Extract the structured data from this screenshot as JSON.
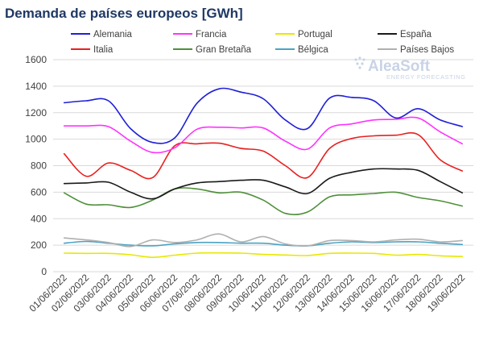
{
  "chart_data": {
    "type": "line",
    "title": "Demanda de países europeos [GWh]",
    "xlabel": "",
    "ylabel": "",
    "ylim": [
      0,
      1600
    ],
    "yticks": [
      0,
      200,
      400,
      600,
      800,
      1000,
      1200,
      1400,
      1600
    ],
    "grid": true,
    "legend_position": "top",
    "x": [
      "01/06/2022",
      "02/06/2022",
      "03/06/2022",
      "04/06/2022",
      "05/06/2022",
      "06/06/2022",
      "07/06/2022",
      "08/06/2022",
      "09/06/2022",
      "10/06/2022",
      "11/06/2022",
      "12/06/2022",
      "13/06/2022",
      "14/06/2022",
      "15/06/2022",
      "16/06/2022",
      "17/06/2022",
      "18/06/2022",
      "19/06/2022"
    ],
    "series": [
      {
        "name": "Alemania",
        "color": "#1f1fd8",
        "values": [
          1275,
          1290,
          1290,
          1080,
          975,
          1010,
          1270,
          1380,
          1355,
          1305,
          1145,
          1080,
          1310,
          1315,
          1290,
          1160,
          1230,
          1145,
          1095
        ]
      },
      {
        "name": "Francia",
        "color": "#ff33ff",
        "values": [
          1100,
          1100,
          1095,
          985,
          900,
          935,
          1075,
          1090,
          1085,
          1085,
          985,
          925,
          1085,
          1115,
          1145,
          1150,
          1160,
          1055,
          965
        ]
      },
      {
        "name": "Portugal",
        "color": "#e8e800",
        "values": [
          140,
          138,
          138,
          128,
          108,
          125,
          140,
          142,
          140,
          130,
          126,
          122,
          138,
          140,
          138,
          125,
          130,
          120,
          115
        ]
      },
      {
        "name": "España",
        "color": "#1a1a1a",
        "values": [
          665,
          670,
          675,
          600,
          550,
          625,
          670,
          680,
          690,
          690,
          640,
          590,
          705,
          750,
          775,
          775,
          765,
          680,
          595
        ]
      },
      {
        "name": "Italia",
        "color": "#e82020",
        "values": [
          890,
          720,
          820,
          765,
          710,
          950,
          965,
          970,
          930,
          910,
          800,
          710,
          930,
          1005,
          1025,
          1030,
          1035,
          845,
          760
        ]
      },
      {
        "name": "Gran Bretaña",
        "color": "#4f8f3a",
        "values": [
          595,
          510,
          505,
          485,
          540,
          625,
          625,
          595,
          600,
          540,
          440,
          450,
          565,
          580,
          590,
          600,
          560,
          535,
          495
        ]
      },
      {
        "name": "Bélgica",
        "color": "#4aa3c4",
        "values": [
          215,
          228,
          215,
          200,
          195,
          210,
          220,
          220,
          215,
          215,
          200,
          195,
          215,
          225,
          220,
          225,
          225,
          215,
          205
        ]
      },
      {
        "name": "Países Bajos",
        "color": "#b0b0b0",
        "values": [
          255,
          240,
          220,
          190,
          240,
          220,
          240,
          285,
          225,
          265,
          210,
          195,
          235,
          235,
          225,
          240,
          245,
          225,
          235
        ]
      }
    ]
  },
  "logo": {
    "main": "AleaSoft",
    "sub": "ENERGY FORECASTING"
  }
}
